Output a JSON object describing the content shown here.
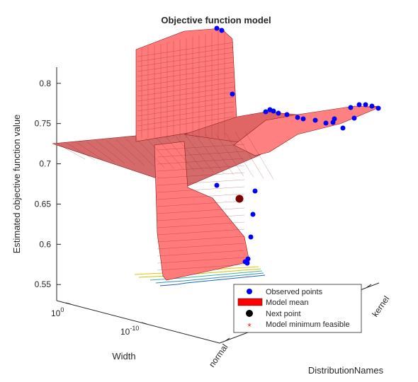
{
  "figure": {
    "title": "Objective function model"
  },
  "chart_data": {
    "type": "surface3d",
    "title": "Objective function model",
    "xlabel": "Width",
    "ylabel": "DistributionNames",
    "zlabel": "Estimated objective function value",
    "x_scale": "log",
    "x_ticks": [
      {
        "base": "10",
        "exp": "0",
        "value": 1
      },
      {
        "base": "10",
        "exp": "-10",
        "value": 1e-10
      }
    ],
    "y_categories": [
      "normal",
      "kernel"
    ],
    "z_ticks": [
      "0.55",
      "0.6",
      "0.65",
      "0.7",
      "0.75",
      "0.8"
    ],
    "zlim": [
      0.53,
      0.82
    ],
    "colors": {
      "surface": "#ff7a7a",
      "mesh": "#8b1a1a",
      "observed": "#0000ff",
      "next_point": "#000000",
      "model_min": "#ff0000"
    },
    "legend": {
      "placement": "bottom-right",
      "entries": [
        {
          "label": "Observed points",
          "marker": "blue-dot"
        },
        {
          "label": "Model mean",
          "marker": "red-patch"
        },
        {
          "label": "Next point",
          "marker": "black-dot"
        },
        {
          "label": "Model minimum feasible",
          "marker": "red-asterisk"
        }
      ]
    }
  }
}
